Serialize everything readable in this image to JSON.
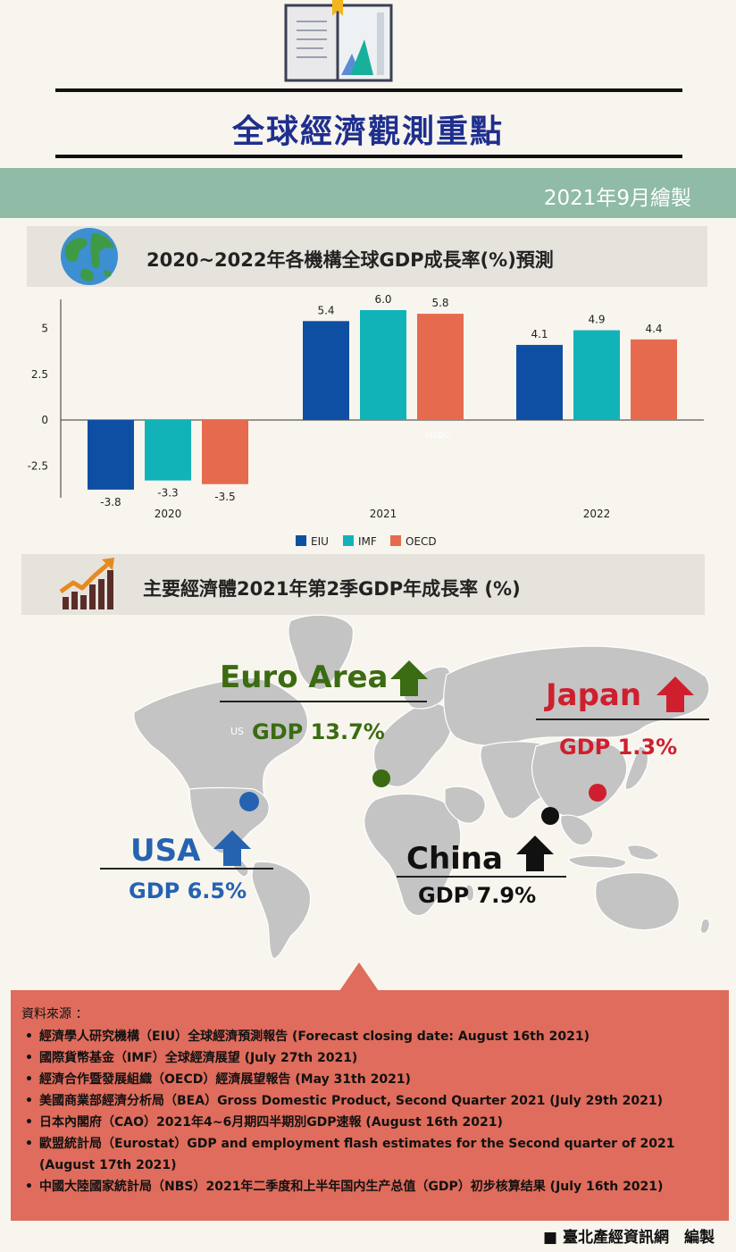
{
  "header": {
    "title": "全球經濟觀測重點",
    "date": "2021年9月繪製"
  },
  "section1": {
    "title": "2020~2022年各機構全球GDP成長率(%)預測"
  },
  "section2": {
    "title": "主要經濟體2021年第2季GDP年成長率 (%)"
  },
  "chart_data": {
    "type": "bar",
    "title": "2020~2022年各機構全球GDP成長率(%)預測",
    "categories": [
      "2020",
      "2021",
      "2022"
    ],
    "series": [
      {
        "name": "EIU",
        "values": [
          -3.8,
          5.4,
          4.1
        ],
        "color": "#0f4fa3"
      },
      {
        "name": "IMF",
        "values": [
          -3.3,
          6.0,
          4.9
        ],
        "color": "#12b3b8"
      },
      {
        "name": "OECD",
        "values": [
          -3.5,
          5.8,
          4.4
        ],
        "color": "#e66a4e"
      }
    ],
    "value_labels": [
      [
        "-3.8",
        "5.4",
        "4.1"
      ],
      [
        "-3.3",
        "6.0",
        "4.9"
      ],
      [
        "-3.5",
        "5.8",
        "4.4"
      ]
    ],
    "yticks": [
      "5",
      "2.5",
      "0",
      "-2.5"
    ],
    "ylim": [
      -4.2,
      6.6
    ],
    "xlabel": "",
    "ylabel": "",
    "legend_position": "bottom",
    "watermark": "HSBC"
  },
  "map": {
    "watermark": "US",
    "regions": [
      {
        "name": "Euro Area",
        "gdp": "GDP 13.7%",
        "color": "#3b6b12"
      },
      {
        "name": "Japan",
        "gdp": "GDP 1.3%",
        "color": "#cf1f2e"
      },
      {
        "name": "USA",
        "gdp": "GDP 6.5%",
        "color": "#2563b0"
      },
      {
        "name": "China",
        "gdp": "GDP 7.9%",
        "color": "#111111"
      }
    ]
  },
  "sources": {
    "heading": "資料來源 ：",
    "items": [
      "經濟學人研究機構（EIU）全球經濟預測報告 (Forecast closing date: August 16th 2021)",
      "國際貨幣基金（IMF）全球經濟展望 (July 27th 2021)",
      "經濟合作暨發展組織（OECD）經濟展望報告 (May 31th 2021)",
      "美國商業部經濟分析局（BEA）Gross Domestic Product, Second Quarter 2021 (July 29th 2021)",
      "日本內閣府（CAO）2021年4~6月期四半期別GDP速報 (August 16th 2021)",
      "歐盟統計局（Eurostat）GDP and employment flash estimates for the Second quarter of 2021 (August 17th 2021)",
      "中國大陸國家統計局（NBS）2021年二季度和上半年国内生产总值（GDP）初步核算结果 (July 16th 2021)"
    ]
  },
  "footer": {
    "text": "■ 臺北產經資訊網　編製"
  }
}
